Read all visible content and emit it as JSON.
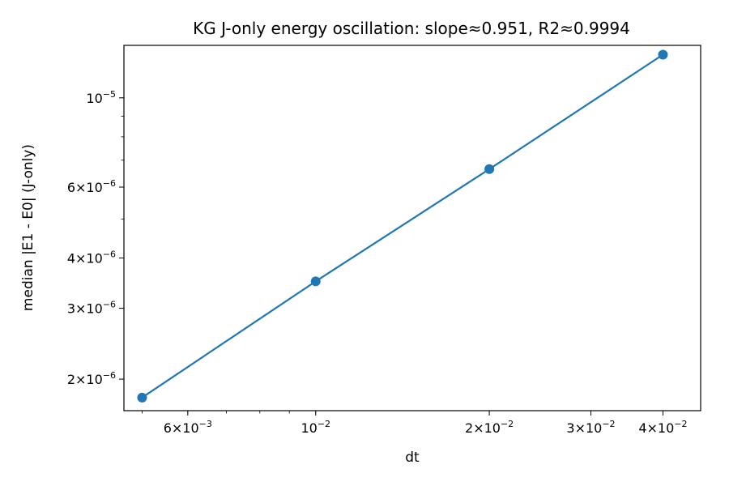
{
  "chart_data": {
    "type": "line",
    "title": "KG J-only energy oscillation: slope≈0.951, R2≈0.9994",
    "xlabel": "dt",
    "ylabel": "median |E1 - E0| (J-only)",
    "xscale": "log",
    "yscale": "log",
    "xlim": [
      0.00465,
      0.0465
    ],
    "ylim": [
      1.67e-06,
      1.35e-05
    ],
    "grid": false,
    "series": [
      {
        "color": "#1f77b4",
        "marker": "circle",
        "x": [
          0.005,
          0.01,
          0.02,
          0.04
        ],
        "y": [
          1.8e-06,
          3.5e-06,
          6.65e-06,
          1.28e-05
        ]
      }
    ],
    "x_ticks": [
      {
        "value": 0.006,
        "base": "6",
        "exp": "−3"
      },
      {
        "value": 0.01,
        "base": "10",
        "exp": "−2"
      },
      {
        "value": 0.02,
        "base": "2",
        "exp": "−2"
      },
      {
        "value": 0.03,
        "base": "3",
        "exp": "−2"
      },
      {
        "value": 0.04,
        "base": "4",
        "exp": "−2"
      }
    ],
    "y_ticks": [
      {
        "value": 2e-06,
        "base": "2",
        "exp": "−6"
      },
      {
        "value": 3e-06,
        "base": "3",
        "exp": "−6"
      },
      {
        "value": 4e-06,
        "base": "4",
        "exp": "−6"
      },
      {
        "value": 6e-06,
        "base": "6",
        "exp": "−6"
      },
      {
        "value": 1e-05,
        "base": "10",
        "exp": "−5"
      }
    ]
  }
}
